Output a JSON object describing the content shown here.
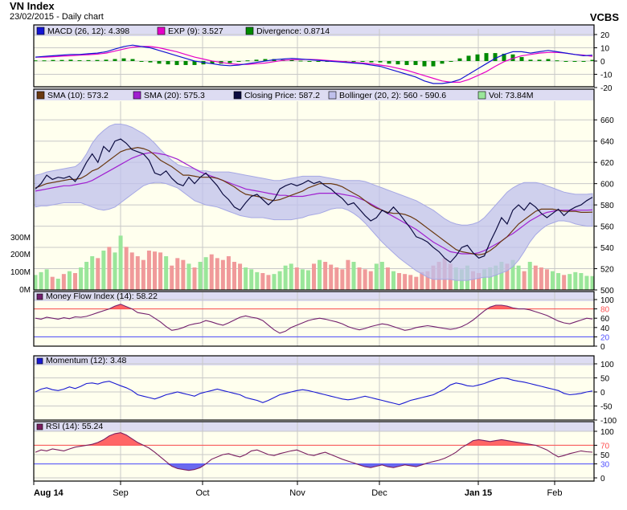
{
  "header": {
    "title": "VN Index",
    "subtitle": "23/02/2015 - Daily chart",
    "brand": "VCBS"
  },
  "colors": {
    "background": "#ffffee",
    "grid": "#c8c8c8",
    "legend_bg": "#dddcf2",
    "macd": "#1414d2",
    "exp": "#e600c8",
    "divergence": "#008a00",
    "sma10": "#6a3810",
    "sma20": "#a020d0",
    "closing": "#0c0c40",
    "bollinger_fill": "#bfc0ec",
    "bollinger_line": "#a6a8e4",
    "vol_up": "#9ae69a",
    "vol_down": "#f09a9a",
    "mfi": "#73206e",
    "momentum": "#1a1ad2",
    "rsi": "#7a1e60",
    "overbought_fill": "#ff6666",
    "oversold_fill": "#6a6aee",
    "level_high": "#ff5050",
    "level_low": "#4f4fff"
  },
  "chart_data": {
    "type": "line",
    "x_axis": {
      "ticks": [
        "Aug 14",
        "Sep",
        "Oct",
        "Nov",
        "Dec",
        "Jan 15",
        "Feb"
      ],
      "bold_ticks": [
        "Aug 14",
        "Jan 15"
      ]
    },
    "panels": [
      {
        "name": "macd",
        "ylim": [
          -20,
          20
        ],
        "yticks": [
          "20",
          "10",
          "0",
          "-10",
          "-20"
        ],
        "legend": [
          {
            "label": "MACD (26, 12): 4.398",
            "color": "#1414d2"
          },
          {
            "label": "EXP (9): 3.527",
            "color": "#e600c8"
          },
          {
            "label": "Divergence: 0.8714",
            "color": "#008a00"
          }
        ],
        "series": [
          {
            "name": "MACD",
            "values": [
              3,
              3.5,
              4,
              4.5,
              5,
              5,
              5.5,
              6,
              7,
              9,
              11,
              12,
              11,
              10,
              8,
              6,
              4,
              2,
              0,
              -1,
              -2,
              -3,
              -3.5,
              -3,
              -2,
              -1,
              0,
              1,
              1.5,
              2,
              1.5,
              1,
              0.5,
              0,
              -0.5,
              -1,
              -1.5,
              -2,
              -3,
              -4,
              -6,
              -8,
              -10,
              -12,
              -15,
              -17,
              -17,
              -16,
              -14,
              -10,
              -6,
              -2,
              2,
              5,
              7,
              7,
              6,
              7,
              8,
              7,
              6,
              5,
              4,
              4.4
            ]
          },
          {
            "name": "EXP",
            "values": [
              3,
              3,
              3.3,
              3.7,
              4,
              4.4,
              4.8,
              5.2,
              6,
              7.5,
              9,
              10.5,
              11,
              11,
              10,
              8.5,
              7,
              5,
              3,
              1.5,
              0,
              -1,
              -2,
              -2.5,
              -2.5,
              -2,
              -1.5,
              -0.5,
              0.5,
              1,
              1.2,
              1.2,
              1,
              0.5,
              0,
              -0.5,
              -1,
              -1.5,
              -2,
              -3,
              -4,
              -5.5,
              -7,
              -9,
              -11,
              -13,
              -15,
              -16,
              -16,
              -14,
              -11,
              -8,
              -4,
              -0.5,
              2,
              4,
              5,
              6,
              6.5,
              6.5,
              6,
              5,
              4.5,
              3.5
            ]
          },
          {
            "name": "Divergence",
            "values": [
              0.5,
              0.5,
              0.8,
              0.8,
              1,
              0.6,
              0.7,
              0.8,
              1,
              1.5,
              2,
              1.5,
              0,
              -1,
              -2,
              -2.5,
              -3,
              -3,
              -3,
              -2.5,
              -2,
              -2,
              -1.5,
              -0.5,
              0.5,
              1,
              1.5,
              1.5,
              1,
              1,
              0.3,
              -0.2,
              -0.5,
              -0.5,
              -0.5,
              -0.5,
              -0.5,
              -0.5,
              -1,
              -1,
              -2,
              -2.5,
              -3,
              -3,
              -4,
              -4,
              -2,
              0,
              2,
              4,
              5,
              6,
              6,
              5.5,
              5,
              3,
              1,
              1,
              1.5,
              0.5,
              0,
              0,
              -0.5,
              0.87
            ]
          }
        ]
      },
      {
        "name": "price",
        "ylim": [
          500,
          670
        ],
        "yticks": [
          "660",
          "640",
          "620",
          "600",
          "580",
          "560",
          "540",
          "520",
          "500"
        ],
        "volume_ticks": [
          "300M",
          "200M",
          "100M",
          "0M"
        ],
        "volume_max": 330,
        "legend": [
          {
            "label": "SMA (10): 573.2",
            "color": "#6a3810"
          },
          {
            "label": "SMA (20): 575.3",
            "color": "#a020d0"
          },
          {
            "label": "Closing Price: 587.2",
            "color": "#0c0c40"
          },
          {
            "label": "Bollinger (20, 2): 560 - 590.6",
            "color": "#bfc0ec"
          },
          {
            "label": "Vol: 73.84M",
            "color": "#9ae69a"
          }
        ],
        "closing": [
          595,
          600,
          608,
          604,
          606,
          605,
          607,
          602,
          610,
          620,
          628,
          620,
          635,
          630,
          640,
          642,
          638,
          632,
          630,
          628,
          622,
          610,
          608,
          612,
          605,
          600,
          598,
          606,
          600,
          606,
          610,
          604,
          598,
          590,
          585,
          578,
          575,
          582,
          588,
          590,
          585,
          580,
          585,
          595,
          598,
          600,
          598,
          600,
          603,
          600,
          602,
          598,
          595,
          590,
          586,
          580,
          582,
          576,
          570,
          565,
          568,
          575,
          572,
          578,
          572,
          565,
          558,
          550,
          548,
          545,
          540,
          536,
          530,
          526,
          532,
          540,
          542,
          535,
          530,
          532,
          545,
          556,
          568,
          562,
          575,
          580,
          575,
          582,
          578,
          572,
          568,
          572,
          576,
          570,
          575,
          578,
          580,
          584,
          587.2
        ],
        "sma10": [
          596,
          598,
          600,
          601,
          602,
          603,
          604,
          604,
          605,
          608,
          612,
          614,
          618,
          622,
          626,
          630,
          632,
          633,
          634,
          633,
          631,
          627,
          622,
          619,
          616,
          612,
          608,
          608,
          607,
          606,
          606,
          606,
          605,
          603,
          600,
          597,
          593,
          590,
          589,
          588,
          587,
          585,
          584,
          585,
          587,
          589,
          591,
          593,
          596,
          598,
          600,
          600,
          600,
          599,
          597,
          594,
          591,
          588,
          584,
          580,
          577,
          575,
          573,
          572,
          572,
          571,
          569,
          566,
          562,
          558,
          554,
          550,
          546,
          542,
          538,
          536,
          535,
          534,
          533,
          534,
          537,
          541,
          546,
          550,
          556,
          562,
          566,
          570,
          574,
          576,
          576,
          576,
          575,
          574,
          574,
          574,
          573,
          573,
          573.2
        ],
        "sma20": [
          593,
          594,
          595,
          596,
          597,
          598,
          598,
          599,
          600,
          601,
          603,
          606,
          609,
          612,
          615,
          618,
          621,
          624,
          626,
          628,
          629,
          629,
          628,
          627,
          625,
          623,
          620,
          617,
          614,
          611,
          609,
          607,
          605,
          603,
          601,
          599,
          597,
          595,
          594,
          593,
          592,
          591,
          590,
          589,
          589,
          588,
          588,
          588,
          589,
          590,
          591,
          591,
          591,
          591,
          590,
          589,
          588,
          586,
          584,
          581,
          578,
          575,
          572,
          569,
          566,
          563,
          560,
          557,
          553,
          549,
          545,
          542,
          539,
          536,
          535,
          534,
          534,
          534,
          535,
          537,
          540,
          543,
          546,
          550,
          553,
          557,
          561,
          565,
          568,
          571,
          573,
          574,
          575,
          575,
          575,
          575,
          575,
          575,
          575.3
        ],
        "boll_upper": [
          608,
          609,
          611,
          612,
          613,
          614,
          615,
          616,
          620,
          628,
          638,
          645,
          650,
          654,
          656,
          656,
          655,
          653,
          650,
          647,
          643,
          638,
          632,
          627,
          622,
          618,
          616,
          615,
          614,
          612,
          612,
          611,
          611,
          611,
          611,
          610,
          609,
          608,
          607,
          606,
          605,
          604,
          603,
          603,
          604,
          605,
          606,
          607,
          607,
          607,
          607,
          606,
          605,
          604,
          603,
          603,
          603,
          603,
          602,
          600,
          598,
          596,
          594,
          592,
          590,
          588,
          586,
          584,
          581,
          578,
          575,
          571,
          567,
          564,
          562,
          561,
          561,
          562,
          564,
          568,
          574,
          580,
          586,
          592,
          596,
          599,
          601,
          601,
          601,
          600,
          598,
          596,
          594,
          592,
          591,
          590,
          590,
          590,
          590.6
        ],
        "boll_lower": [
          578,
          579,
          579,
          580,
          581,
          582,
          582,
          582,
          582,
          580,
          578,
          576,
          575,
          576,
          578,
          582,
          586,
          590,
          594,
          598,
          600,
          601,
          601,
          600,
          598,
          596,
          592,
          588,
          584,
          582,
          580,
          579,
          578,
          576,
          574,
          572,
          570,
          569,
          568,
          568,
          568,
          567,
          566,
          566,
          566,
          566,
          567,
          568,
          570,
          571,
          572,
          574,
          576,
          577,
          577,
          575,
          572,
          568,
          563,
          557,
          551,
          545,
          540,
          535,
          530,
          526,
          522,
          518,
          515,
          512,
          510,
          510,
          510,
          510,
          509,
          509,
          509,
          510,
          511,
          512,
          512,
          514,
          516,
          518,
          522,
          528,
          536,
          545,
          552,
          557,
          561,
          563,
          565,
          565,
          564,
          562,
          561,
          560,
          560
        ]
      },
      {
        "name": "mfi",
        "ylim": [
          0,
          100
        ],
        "yticks": [
          "100",
          "80",
          "60",
          "40",
          "20",
          "0"
        ],
        "levels": [
          80,
          20
        ],
        "legend": [
          {
            "label": "Money Flow Index (14): 58.22",
            "color": "#73206e"
          }
        ],
        "values": [
          60,
          58,
          62,
          60,
          58,
          61,
          59,
          63,
          62,
          64,
          68,
          72,
          76,
          80,
          86,
          90,
          85,
          80,
          72,
          70,
          68,
          60,
          52,
          42,
          34,
          36,
          40,
          45,
          48,
          50,
          55,
          52,
          48,
          45,
          50,
          56,
          62,
          65,
          62,
          60,
          55,
          45,
          35,
          28,
          32,
          40,
          45,
          50,
          55,
          58,
          60,
          58,
          55,
          52,
          48,
          42,
          38,
          35,
          38,
          42,
          45,
          48,
          46,
          42,
          38,
          34,
          36,
          40,
          42,
          44,
          42,
          40,
          38,
          36,
          38,
          42,
          48,
          56,
          66,
          76,
          84,
          88,
          88,
          86,
          82,
          80,
          80,
          78,
          74,
          70,
          66,
          60,
          54,
          50,
          48,
          52,
          56,
          60,
          58.2
        ]
      },
      {
        "name": "momentum",
        "ylim": [
          -100,
          100
        ],
        "yticks": [
          "100",
          "50",
          "0",
          "-50",
          "-100"
        ],
        "legend": [
          {
            "label": "Momentum (12): 3.48",
            "color": "#1a1ad2"
          }
        ],
        "values": [
          0,
          10,
          15,
          8,
          5,
          10,
          18,
          12,
          20,
          30,
          32,
          28,
          35,
          38,
          30,
          22,
          15,
          5,
          -10,
          -15,
          -20,
          -25,
          -18,
          -10,
          -5,
          0,
          -5,
          -10,
          -15,
          -5,
          0,
          5,
          10,
          5,
          0,
          -5,
          -10,
          -20,
          -25,
          -30,
          -38,
          -30,
          -20,
          -10,
          -5,
          0,
          5,
          8,
          5,
          0,
          -5,
          -10,
          -15,
          -20,
          -25,
          -28,
          -25,
          -20,
          -15,
          -20,
          -25,
          -30,
          -35,
          -40,
          -45,
          -38,
          -30,
          -25,
          -20,
          -15,
          -10,
          0,
          10,
          25,
          32,
          28,
          22,
          20,
          25,
          30,
          38,
          45,
          50,
          48,
          42,
          38,
          35,
          30,
          25,
          20,
          15,
          10,
          5,
          -5,
          -10,
          -8,
          -5,
          0,
          3.48
        ]
      },
      {
        "name": "rsi",
        "ylim": [
          0,
          100
        ],
        "yticks": [
          "100",
          "70",
          "50",
          "30",
          "0"
        ],
        "levels": [
          70,
          30
        ],
        "legend": [
          {
            "label": "RSI (14): 55.24",
            "color": "#7a1e60"
          }
        ],
        "values": [
          55,
          60,
          58,
          62,
          60,
          58,
          62,
          66,
          68,
          70,
          72,
          76,
          82,
          90,
          95,
          97,
          92,
          84,
          76,
          70,
          64,
          55,
          45,
          35,
          25,
          20,
          18,
          16,
          18,
          22,
          30,
          40,
          45,
          50,
          52,
          48,
          45,
          50,
          58,
          60,
          55,
          50,
          48,
          52,
          55,
          58,
          60,
          55,
          50,
          48,
          52,
          55,
          50,
          45,
          40,
          36,
          32,
          28,
          24,
          22,
          25,
          28,
          24,
          22,
          25,
          28,
          26,
          24,
          28,
          32,
          35,
          38,
          42,
          48,
          55,
          65,
          72,
          80,
          82,
          80,
          78,
          80,
          82,
          80,
          78,
          76,
          74,
          72,
          70,
          65,
          60,
          52,
          45,
          48,
          52,
          55,
          58,
          56,
          55.24
        ]
      }
    ]
  }
}
